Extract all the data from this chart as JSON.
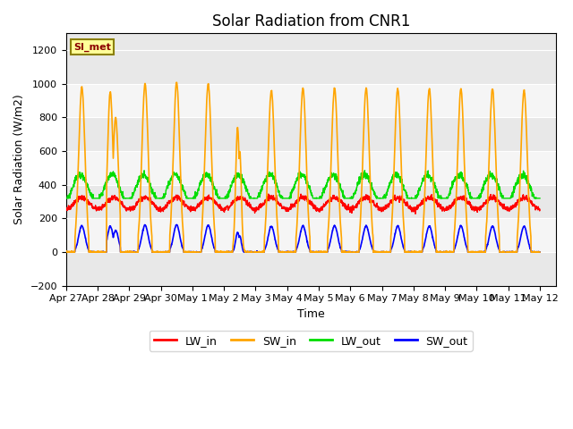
{
  "title": "Solar Radiation from CNR1",
  "xlabel": "Time",
  "ylabel": "Solar Radiation (W/m2)",
  "ylim": [
    -200,
    1300
  ],
  "yticks": [
    -200,
    0,
    200,
    400,
    600,
    800,
    1000,
    1200
  ],
  "x_tick_labels": [
    "Apr 27",
    "Apr 28",
    "Apr 29",
    "Apr 30",
    "May 1",
    "May 2",
    "May 3",
    "May 4",
    "May 5",
    "May 6",
    "May 7",
    "May 8",
    "May 9",
    "May 10",
    "May 11",
    "May 12"
  ],
  "legend_label": "SI_met",
  "line_colors": {
    "LW_in": "#FF0000",
    "SW_in": "#FFA500",
    "LW_out": "#00DD00",
    "SW_out": "#0000FF"
  },
  "plot_bg_color": "#E8E8E8",
  "band_color1": "#E8E8E8",
  "band_color2": "#F5F5F5",
  "title_fontsize": 12,
  "axis_label_fontsize": 9,
  "tick_fontsize": 8
}
